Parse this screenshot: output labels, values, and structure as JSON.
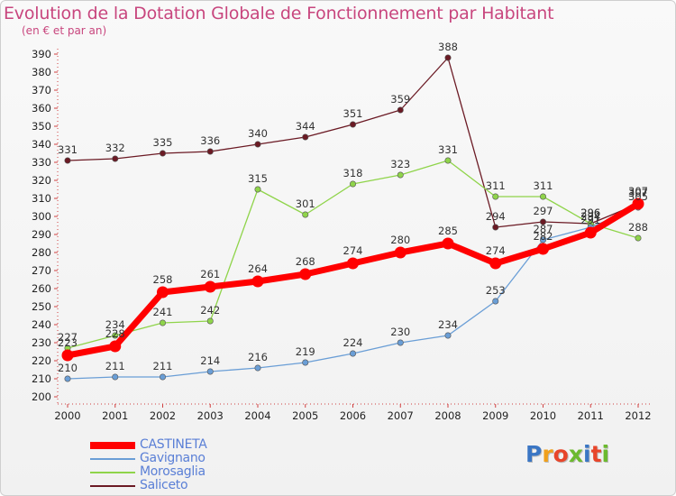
{
  "header": {
    "title": "Evolution de la Dotation Globale de Fonctionnement par Habitant",
    "subtitle": "(en € et par an)"
  },
  "logo": {
    "text": "Proxiti",
    "colors": [
      "#3a76c4",
      "#f0a01c",
      "#e8452a",
      "#6cba2e",
      "#3a76c4",
      "#e8452a",
      "#6cba2e"
    ]
  },
  "chart_data": {
    "type": "line",
    "title": "Evolution de la Dotation Globale de Fonctionnement par Habitant",
    "subtitle": "(en € et par an)",
    "x": [
      "2000",
      "2001",
      "2002",
      "2003",
      "2004",
      "2005",
      "2006",
      "2007",
      "2008",
      "2009",
      "2010",
      "2011",
      "2012"
    ],
    "ylim": [
      200,
      390
    ],
    "yticks": [
      200,
      210,
      220,
      230,
      240,
      250,
      260,
      270,
      280,
      290,
      300,
      310,
      320,
      330,
      340,
      350,
      360,
      370,
      380,
      390
    ],
    "grid": false,
    "legend_position": "bottom-left",
    "series": [
      {
        "name": "Saliceto",
        "color": "#6b1a24",
        "values": [
          331,
          332,
          335,
          336,
          340,
          344,
          351,
          359,
          388,
          294,
          297,
          296,
          307
        ]
      },
      {
        "name": "Morosaglia",
        "color": "#8fd44a",
        "values": [
          227,
          234,
          241,
          242,
          315,
          301,
          318,
          323,
          331,
          311,
          311,
          296,
          288
        ]
      },
      {
        "name": "Gavignano",
        "color": "#6a9ed6",
        "values": [
          210,
          211,
          211,
          214,
          216,
          219,
          224,
          230,
          234,
          253,
          287,
          294,
          305
        ]
      },
      {
        "name": "CASTINETA",
        "color": "#ff0000",
        "values": [
          223,
          228,
          258,
          261,
          264,
          268,
          274,
          280,
          285,
          274,
          282,
          291,
          307
        ]
      }
    ],
    "legend": [
      {
        "name": "CASTINETA",
        "color": "#ff0000"
      },
      {
        "name": "Gavignano",
        "color": "#6a9ed6"
      },
      {
        "name": "Morosaglia",
        "color": "#8fd44a"
      },
      {
        "name": "Saliceto",
        "color": "#6b1a24"
      }
    ]
  }
}
